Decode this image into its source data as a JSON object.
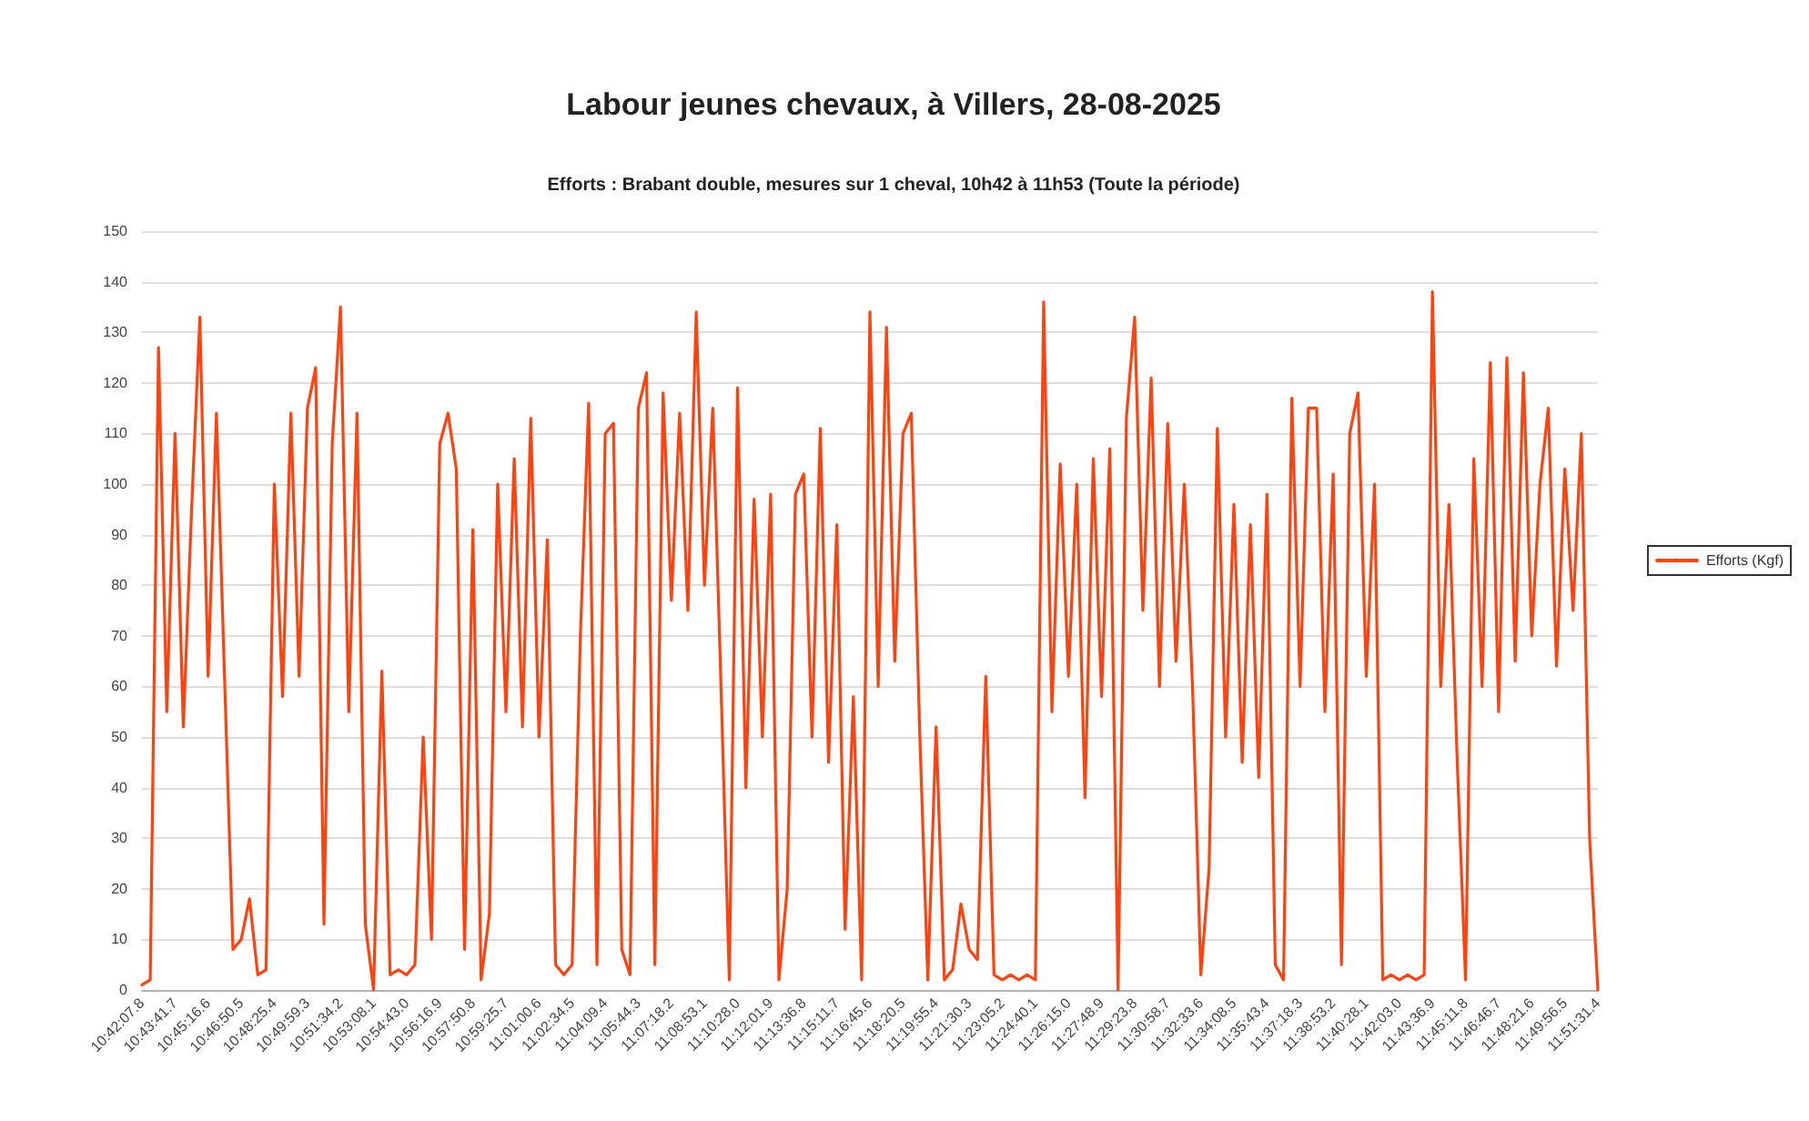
{
  "chart_data": {
    "type": "line",
    "title": "Labour jeunes chevaux, à Villers, 28-08-2025",
    "subtitle": "Efforts : Brabant double, mesures sur 1 cheval, 10h42 à 11h53 (Toute la période)",
    "categories": [
      "10:42:07.8",
      null,
      null,
      null,
      "10:43:41.7",
      null,
      null,
      null,
      "10:45:16.6",
      null,
      null,
      null,
      "10:46:50.5",
      null,
      null,
      null,
      "10:48:25.4",
      null,
      null,
      null,
      "10:49:59.3",
      null,
      null,
      null,
      "10:51:34.2",
      null,
      null,
      null,
      "10:53:08.1",
      null,
      null,
      null,
      "10:54:43.0",
      null,
      null,
      null,
      "10:56:16.9",
      null,
      null,
      null,
      "10:57:50.8",
      null,
      null,
      null,
      "10:59:25.7",
      null,
      null,
      null,
      "11:01:00.6",
      null,
      null,
      null,
      "11:02:34.5",
      null,
      null,
      null,
      "11:04:09.4",
      null,
      null,
      null,
      "11:05:44.3",
      null,
      null,
      null,
      "11:07:18.2",
      null,
      null,
      null,
      "11:08:53.1",
      null,
      null,
      null,
      "11:10:28.0",
      null,
      null,
      null,
      "11:12:01.9",
      null,
      null,
      null,
      "11:13:36.8",
      null,
      null,
      null,
      "11:15:11.7",
      null,
      null,
      null,
      "11:16:45.6",
      null,
      null,
      null,
      "11:18:20.5",
      null,
      null,
      null,
      "11:19:55.4",
      null,
      null,
      null,
      "11:21:30.3",
      null,
      null,
      null,
      "11:23:05.2",
      null,
      null,
      null,
      "11:24:40.1",
      null,
      null,
      null,
      "11:26:15.0",
      null,
      null,
      null,
      "11:27:48.9",
      null,
      null,
      null,
      "11:29:23.8",
      null,
      null,
      null,
      "11:30:58.7",
      null,
      null,
      null,
      "11:32:33.6",
      null,
      null,
      null,
      "11:34:08.5",
      null,
      null,
      null,
      "11:35:43.4",
      null,
      null,
      null,
      "11:37:18.3",
      null,
      null,
      null,
      "11:38:53.2",
      null,
      null,
      null,
      "11:40:28.1",
      null,
      null,
      null,
      "11:42:03.0",
      null,
      null,
      null,
      "11:43:36.9",
      null,
      null,
      null,
      "11:45:11.8",
      null,
      null,
      null,
      "11:46:46.7",
      null,
      null,
      null,
      "11:48:21.6",
      null,
      null,
      null,
      "11:49:56.5",
      null,
      null,
      null,
      "11:51:31.4"
    ],
    "series": [
      {
        "name": "Efforts (Kgf)",
        "color": "#ff420e",
        "values": [
          1,
          2,
          127,
          55,
          110,
          52,
          95,
          133,
          62,
          114,
          61,
          8,
          10,
          18,
          3,
          4,
          100,
          58,
          114,
          62,
          115,
          123,
          13,
          108,
          135,
          55,
          114,
          13,
          0,
          63,
          3,
          4,
          3,
          5,
          50,
          10,
          108,
          114,
          103,
          8,
          91,
          2,
          15,
          100,
          55,
          105,
          52,
          113,
          50,
          89,
          5,
          3,
          5,
          70,
          116,
          5,
          110,
          112,
          8,
          3,
          115,
          122,
          5,
          118,
          77,
          114,
          75,
          134,
          80,
          115,
          60,
          2,
          119,
          40,
          97,
          50,
          98,
          2,
          20,
          98,
          102,
          50,
          111,
          45,
          92,
          12,
          58,
          2,
          134,
          60,
          131,
          65,
          110,
          114,
          52,
          2,
          52,
          2,
          4,
          17,
          8,
          6,
          62,
          3,
          2,
          3,
          2,
          3,
          2,
          136,
          55,
          104,
          62,
          100,
          38,
          105,
          58,
          107,
          0,
          113,
          133,
          75,
          121,
          60,
          112,
          65,
          100,
          60,
          3,
          24,
          111,
          50,
          96,
          45,
          92,
          42,
          98,
          5,
          2,
          117,
          60,
          115,
          115,
          55,
          102,
          5,
          110,
          118,
          62,
          100,
          2,
          3,
          2,
          3,
          2,
          3,
          138,
          60,
          96,
          45,
          2,
          105,
          60,
          124,
          55,
          125,
          65,
          122,
          70,
          100,
          115,
          64,
          103,
          75,
          110,
          30,
          0
        ]
      }
    ],
    "ylim": [
      0,
      150
    ],
    "yticks": [
      0,
      10,
      20,
      30,
      40,
      50,
      60,
      70,
      80,
      90,
      100,
      110,
      120,
      130,
      140,
      150
    ],
    "grid": "y",
    "legend": "right",
    "marker": "none",
    "line_style": "solid"
  }
}
